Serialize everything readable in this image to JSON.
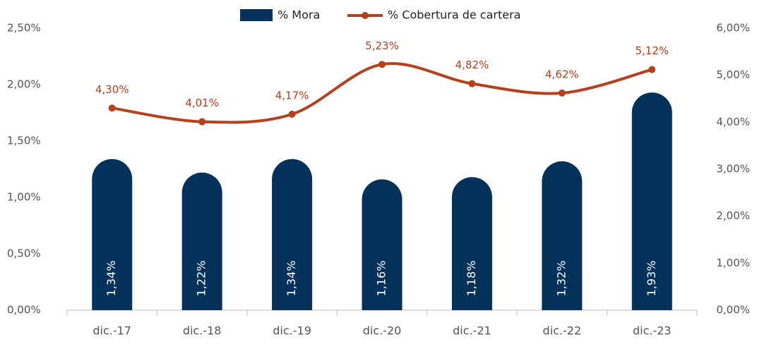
{
  "chart_data": {
    "type": "combo",
    "categories": [
      "dic.-17",
      "dic.-18",
      "dic.-19",
      "dic.-20",
      "dic.-21",
      "dic.-22",
      "dic.-23"
    ],
    "series": [
      {
        "name": "% Mora",
        "type": "bar",
        "color": "#05325a",
        "values": [
          1.34,
          1.22,
          1.34,
          1.16,
          1.18,
          1.32,
          1.93
        ],
        "value_labels": [
          "1,34%",
          "1,22%",
          "1,34%",
          "1,16%",
          "1,18%",
          "1,32%",
          "1,93%"
        ]
      },
      {
        "name": "% Cobertura de cartera",
        "type": "line",
        "axis": "y2",
        "color": "#b5401b",
        "values": [
          4.3,
          4.01,
          4.17,
          5.23,
          4.82,
          4.62,
          5.12
        ],
        "value_labels": [
          "4,30%",
          "4,01%",
          "4,17%",
          "5,23%",
          "4,82%",
          "4,62%",
          "5,12%"
        ]
      }
    ],
    "ylim": [
      0,
      2.5
    ],
    "yticks": [
      {
        "value": 0,
        "label": "0,00%"
      },
      {
        "value": 0.5,
        "label": "0,50%"
      },
      {
        "value": 1,
        "label": "1,00%"
      },
      {
        "value": 1.5,
        "label": "1,50%"
      },
      {
        "value": 2,
        "label": "2,00%"
      },
      {
        "value": 2.5,
        "label": "2,50%"
      }
    ],
    "y2lim": [
      0,
      6
    ],
    "y2ticks": [
      {
        "value": 0,
        "label": "0,00%"
      },
      {
        "value": 1,
        "label": "1,00%"
      },
      {
        "value": 2,
        "label": "2,00%"
      },
      {
        "value": 3,
        "label": "3,00%"
      },
      {
        "value": 4,
        "label": "4,00%"
      },
      {
        "value": 5,
        "label": "5,00%"
      },
      {
        "value": 6,
        "label": "6,00%"
      }
    ]
  }
}
